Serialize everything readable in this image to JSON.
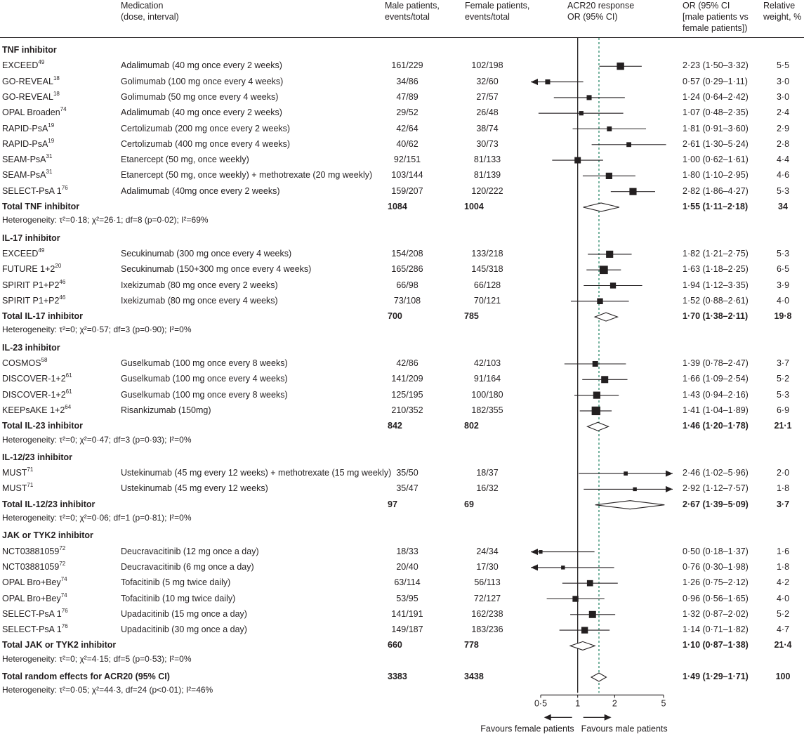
{
  "header": {
    "medication": [
      "Medication",
      "(dose, interval)"
    ],
    "male": [
      "Male patients,",
      "events/total"
    ],
    "female": [
      "Female patients,",
      "events/total"
    ],
    "acr": [
      "ACR20 response",
      "OR (95% CI)"
    ],
    "or": [
      "OR (95% CI",
      "[male patients vs",
      "female patients])"
    ],
    "weight": [
      "Relative",
      "weight, %"
    ]
  },
  "chart_data": {
    "type": "forest",
    "x_scale": "log",
    "xlim": [
      0.5,
      5
    ],
    "x_ticks": [
      "0·5",
      "1",
      "2",
      "5"
    ],
    "reference_line": 1,
    "pooled_line": 1.49,
    "favours_left": "Favours female patients",
    "favours_right": "Favours male patients",
    "rows": [
      {
        "kind": "section",
        "label": "TNF inhibitor"
      },
      {
        "kind": "study",
        "study": "EXCEED",
        "ref": "49",
        "med": "Adalimumab (40 mg once every 2 weeks)",
        "male": "161/229",
        "female": "102/198",
        "or": 2.23,
        "lo": 1.5,
        "hi": 3.32,
        "or_text": "2·23 (1·50–3·32)",
        "weight": "5·5"
      },
      {
        "kind": "study",
        "study": "GO-REVEAL",
        "ref": "18",
        "med": "Golimumab (100 mg once every 4 weeks)",
        "male": "34/86",
        "female": "32/60",
        "or": 0.57,
        "lo": 0.29,
        "hi": 1.11,
        "or_text": "0·57 (0·29–1·11)",
        "weight": "3·0"
      },
      {
        "kind": "study",
        "study": "GO-REVEAL",
        "ref": "18",
        "med": "Golimumab (50 mg once every 4 weeks)",
        "male": "47/89",
        "female": "27/57",
        "or": 1.24,
        "lo": 0.64,
        "hi": 2.42,
        "or_text": "1·24 (0·64–2·42)",
        "weight": "3·0"
      },
      {
        "kind": "study",
        "study": "OPAL Broaden",
        "ref": "74",
        "med": "Adalimumab (40 mg once every 2 weeks)",
        "male": "29/52",
        "female": "26/48",
        "or": 1.07,
        "lo": 0.48,
        "hi": 2.35,
        "or_text": "1·07 (0·48–2·35)",
        "weight": "2·4"
      },
      {
        "kind": "study",
        "study": "RAPID-PsA",
        "ref": "19",
        "med": "Certolizumab (200 mg once every 2 weeks)",
        "male": "42/64",
        "female": "38/74",
        "or": 1.81,
        "lo": 0.91,
        "hi": 3.6,
        "or_text": "1·81 (0·91–3·60)",
        "weight": "2·9"
      },
      {
        "kind": "study",
        "study": "RAPID-PsA",
        "ref": "19",
        "med": "Certolizumab (400 mg once every 4 weeks)",
        "male": "40/62",
        "female": "30/73",
        "or": 2.61,
        "lo": 1.3,
        "hi": 5.24,
        "or_text": "2·61 (1·30–5·24)",
        "weight": "2·8"
      },
      {
        "kind": "study",
        "study": "SEAM-PsA",
        "ref": "31",
        "med": "Etanercept (50 mg, once weekly)",
        "male": "92/151",
        "female": "81/133",
        "or": 1.0,
        "lo": 0.62,
        "hi": 1.61,
        "or_text": "1·00 (0·62–1·61)",
        "weight": "4·4"
      },
      {
        "kind": "study",
        "study": "SEAM-PsA",
        "ref": "31",
        "med": "Etanercept (50 mg, once weekly) + methotrexate (20 mg weekly)",
        "male": "103/144",
        "female": "81/139",
        "or": 1.8,
        "lo": 1.1,
        "hi": 2.95,
        "or_text": "1·80 (1·10–2·95)",
        "weight": "4·6"
      },
      {
        "kind": "study",
        "study": "SELECT-PsA 1",
        "ref": "76",
        "med": "Adalimumab (40mg once every 2 weeks)",
        "male": "159/207",
        "female": "120/222",
        "or": 2.82,
        "lo": 1.86,
        "hi": 4.27,
        "or_text": "2·82 (1·86–4·27)",
        "weight": "5·3"
      },
      {
        "kind": "total",
        "label": "Total TNF inhibitor",
        "male": "1084",
        "female": "1004",
        "or": 1.55,
        "lo": 1.11,
        "hi": 2.18,
        "or_text": "1·55 (1·11–2·18)",
        "weight": "34"
      },
      {
        "kind": "het",
        "text": "Heterogeneity: τ²=0·18; χ²=26·1; df=8 (p=0·02); I²=69%"
      },
      {
        "kind": "section",
        "label": "IL-17 inhibitor"
      },
      {
        "kind": "study",
        "study": "EXCEED",
        "ref": "49",
        "med": "Secukinumab (300 mg once every 4 weeks)",
        "male": "154/208",
        "female": "133/218",
        "or": 1.82,
        "lo": 1.21,
        "hi": 2.75,
        "or_text": "1·82 (1·21–2·75)",
        "weight": "5·3"
      },
      {
        "kind": "study",
        "study": "FUTURE 1+2",
        "ref": "20",
        "med": "Secukinumab (150+300 mg once every 4 weeks)",
        "male": "165/286",
        "female": "145/318",
        "or": 1.63,
        "lo": 1.18,
        "hi": 2.25,
        "or_text": "1·63 (1·18–2·25)",
        "weight": "6·5"
      },
      {
        "kind": "study",
        "study": "SPIRIT P1+P2",
        "ref": "46",
        "med": "Ixekizumab (80 mg once every 2 weeks)",
        "male": "66/98",
        "female": "66/128",
        "or": 1.94,
        "lo": 1.12,
        "hi": 3.35,
        "or_text": "1·94 (1·12–3·35)",
        "weight": "3·9"
      },
      {
        "kind": "study",
        "study": "SPIRIT P1+P2",
        "ref": "46",
        "med": "Ixekizumab (80 mg once every 4 weeks)",
        "male": "73/108",
        "female": "70/121",
        "or": 1.52,
        "lo": 0.88,
        "hi": 2.61,
        "or_text": "1·52 (0·88–2·61)",
        "weight": "4·0"
      },
      {
        "kind": "total",
        "label": "Total IL-17 inhibitor",
        "male": "700",
        "female": "785",
        "or": 1.7,
        "lo": 1.38,
        "hi": 2.11,
        "or_text": "1·70 (1·38–2·11)",
        "weight": "19·8"
      },
      {
        "kind": "het",
        "text": "Heterogeneity: τ²=0; χ²=0·57; df=3 (p=0·90); I²=0%"
      },
      {
        "kind": "section",
        "label": "IL-23 inhibitor"
      },
      {
        "kind": "study",
        "study": "COSMOS",
        "ref": "58",
        "med": "Guselkumab (100 mg once every 8 weeks)",
        "male": "42/86",
        "female": "42/103",
        "or": 1.39,
        "lo": 0.78,
        "hi": 2.47,
        "or_text": "1·39 (0·78–2·47)",
        "weight": "3·7"
      },
      {
        "kind": "study",
        "study": "DISCOVER-1+2",
        "ref": "61",
        "med": "Guselkumab (100 mg once every 4 weeks)",
        "male": "141/209",
        "female": "91/164",
        "or": 1.66,
        "lo": 1.09,
        "hi": 2.54,
        "or_text": "1·66 (1·09–2·54)",
        "weight": "5·2"
      },
      {
        "kind": "study",
        "study": "DISCOVER-1+2",
        "ref": "61",
        "med": "Guselkumab (100 mg once every 8 weeks)",
        "male": "125/195",
        "female": "100/180",
        "or": 1.43,
        "lo": 0.94,
        "hi": 2.16,
        "or_text": "1·43 (0·94–2·16)",
        "weight": "5·3"
      },
      {
        "kind": "study",
        "study": "KEEPsAKE 1+2",
        "ref": "64",
        "med": "Risankizumab (150mg)",
        "male": "210/352",
        "female": "182/355",
        "or": 1.41,
        "lo": 1.04,
        "hi": 1.89,
        "or_text": "1·41 (1·04–1·89)",
        "weight": "6·9"
      },
      {
        "kind": "total",
        "label": "Total IL-23 inhibitor",
        "male": "842",
        "female": "802",
        "or": 1.46,
        "lo": 1.2,
        "hi": 1.78,
        "or_text": "1·46 (1·20–1·78)",
        "weight": "21·1"
      },
      {
        "kind": "het",
        "text": "Heterogeneity: τ²=0; χ²=0·47; df=3 (p=0·93); I²=0%"
      },
      {
        "kind": "section",
        "label": "IL-12/23 inhibitor"
      },
      {
        "kind": "study",
        "study": "MUST",
        "ref": "71",
        "med": "Ustekinumab (45 mg every 12 weeks) + methotrexate (15 mg weekly)",
        "male": "35/50",
        "female": "18/37",
        "or": 2.46,
        "lo": 1.02,
        "hi": 5.96,
        "or_text": "2·46 (1·02–5·96)",
        "weight": "2·0"
      },
      {
        "kind": "study",
        "study": "MUST",
        "ref": "71",
        "med": "Ustekinumab (45 mg every 12 weeks)",
        "male": "35/47",
        "female": "16/32",
        "or": 2.92,
        "lo": 1.12,
        "hi": 7.57,
        "or_text": "2·92 (1·12–7·57)",
        "weight": "1·8"
      },
      {
        "kind": "total",
        "label": "Total IL-12/23 inhibitor",
        "male": "97",
        "female": "69",
        "or": 2.67,
        "lo": 1.39,
        "hi": 5.09,
        "or_text": "2·67 (1·39–5·09)",
        "weight": "3·7"
      },
      {
        "kind": "het",
        "text": "Heterogeneity: τ²=0; χ²=0·06; df=1 (p=0·81); I²=0%"
      },
      {
        "kind": "section",
        "label": "JAK or TYK2 inhibitor"
      },
      {
        "kind": "study",
        "study": "NCT03881059",
        "ref": "72",
        "med": "Deucravacitinib (12 mg once a day)",
        "male": "18/33",
        "female": "24/34",
        "or": 0.5,
        "lo": 0.18,
        "hi": 1.37,
        "or_text": "0·50 (0·18–1·37)",
        "weight": "1·6"
      },
      {
        "kind": "study",
        "study": "NCT03881059",
        "ref": "72",
        "med": "Deucravacitinib (6 mg once a day)",
        "male": "20/40",
        "female": "17/30",
        "or": 0.76,
        "lo": 0.3,
        "hi": 1.98,
        "or_text": "0·76 (0·30–1·98)",
        "weight": "1·8"
      },
      {
        "kind": "study",
        "study": "OPAL Bro+Bey",
        "ref": "74",
        "med": "Tofacitinib (5 mg twice daily)",
        "male": "63/114",
        "female": "56/113",
        "or": 1.26,
        "lo": 0.75,
        "hi": 2.12,
        "or_text": "1·26 (0·75–2·12)",
        "weight": "4·2"
      },
      {
        "kind": "study",
        "study": "OPAL Bro+Bey",
        "ref": "74",
        "med": "Tofacitinib (10 mg twice daily)",
        "male": "53/95",
        "female": "72/127",
        "or": 0.96,
        "lo": 0.56,
        "hi": 1.65,
        "or_text": "0·96 (0·56–1·65)",
        "weight": "4·0"
      },
      {
        "kind": "study",
        "study": "SELECT-PsA 1",
        "ref": "76",
        "med": "Upadacitinib (15 mg once a day)",
        "male": "141/191",
        "female": "162/238",
        "or": 1.32,
        "lo": 0.87,
        "hi": 2.02,
        "or_text": "1·32 (0·87–2·02)",
        "weight": "5·2"
      },
      {
        "kind": "study",
        "study": "SELECT-PsA 1",
        "ref": "76",
        "med": "Upadacitinib (30 mg once a day)",
        "male": "149/187",
        "female": "183/236",
        "or": 1.14,
        "lo": 0.71,
        "hi": 1.82,
        "or_text": "1·14 (0·71–1·82)",
        "weight": "4·7"
      },
      {
        "kind": "total",
        "label": "Total JAK or TYK2 inhibitor",
        "male": "660",
        "female": "778",
        "or": 1.1,
        "lo": 0.87,
        "hi": 1.38,
        "or_text": "1·10 (0·87–1·38)",
        "weight": "21·4"
      },
      {
        "kind": "het",
        "text": "Heterogeneity: τ²=0; χ²=4·15; df=5 (p=0·53); I²=0%"
      },
      {
        "kind": "total",
        "label": "Total random effects for ACR20 (95% CI)",
        "male": "3383",
        "female": "3438",
        "or": 1.49,
        "lo": 1.29,
        "hi": 1.71,
        "or_text": "1·49 (1·29–1·71)",
        "weight": "100"
      },
      {
        "kind": "het",
        "text": "Heterogeneity: τ²=0·05; χ²=44·3, df=24 (p<0·01); I²=46%"
      }
    ]
  }
}
